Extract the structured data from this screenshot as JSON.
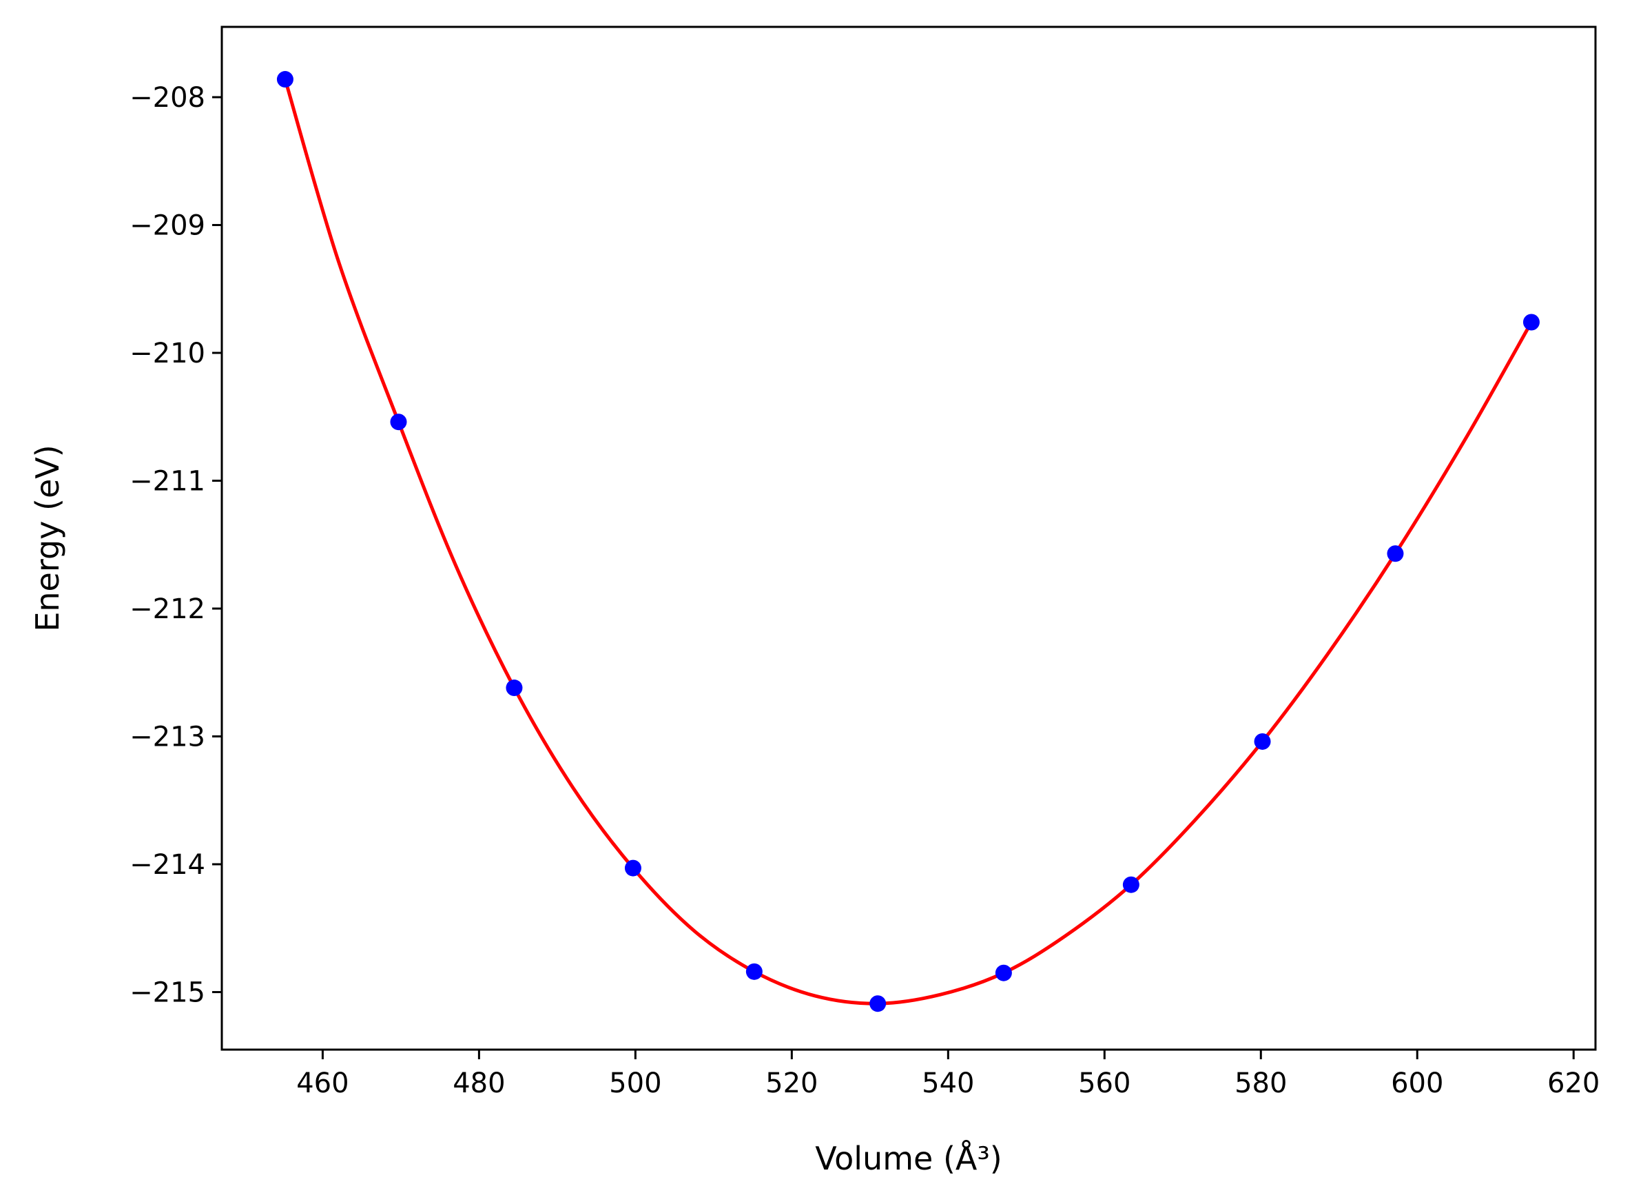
{
  "chart_data": {
    "type": "line",
    "title": "",
    "xlabel": "Volume (Å³)",
    "ylabel": "Energy (eV)",
    "xlim": [
      447.1,
      622.8
    ],
    "ylim": [
      -215.45,
      -207.45
    ],
    "xticks": [
      460,
      480,
      500,
      520,
      540,
      560,
      580,
      600,
      620
    ],
    "yticks": [
      -208,
      -209,
      -210,
      -211,
      -212,
      -213,
      -214,
      -215
    ],
    "xtick_labels": [
      "460",
      "480",
      "500",
      "520",
      "540",
      "560",
      "580",
      "600",
      "620"
    ],
    "ytick_labels": [
      "−208",
      "−209",
      "−210",
      "−211",
      "−212",
      "−213",
      "−214",
      "−215"
    ],
    "grid": false,
    "series": [
      {
        "kind": "scatter",
        "color": "#0000ff",
        "x": [
          455.2,
          469.7,
          484.5,
          499.7,
          515.2,
          531.0,
          547.1,
          563.4,
          580.2,
          597.2,
          614.6
        ],
        "y": [
          -207.86,
          -210.54,
          -212.62,
          -214.03,
          -214.84,
          -215.09,
          -214.85,
          -214.16,
          -213.04,
          -211.57,
          -209.76
        ]
      },
      {
        "kind": "line",
        "color": "#ff0000",
        "x": [
          455.2,
          462.0,
          469.7,
          477.0,
          484.5,
          492.0,
          499.7,
          507.5,
          515.2,
          523.0,
          531.0,
          539.0,
          547.1,
          555.0,
          563.4,
          571.5,
          580.2,
          588.5,
          597.2,
          606.0,
          614.6
        ],
        "y": [
          -207.86,
          -209.28,
          -210.54,
          -211.66,
          -212.62,
          -213.4,
          -214.03,
          -214.52,
          -214.84,
          -215.03,
          -215.09,
          -215.02,
          -214.85,
          -214.56,
          -214.16,
          -213.66,
          -213.04,
          -212.36,
          -211.57,
          -210.69,
          -209.76
        ]
      }
    ]
  }
}
